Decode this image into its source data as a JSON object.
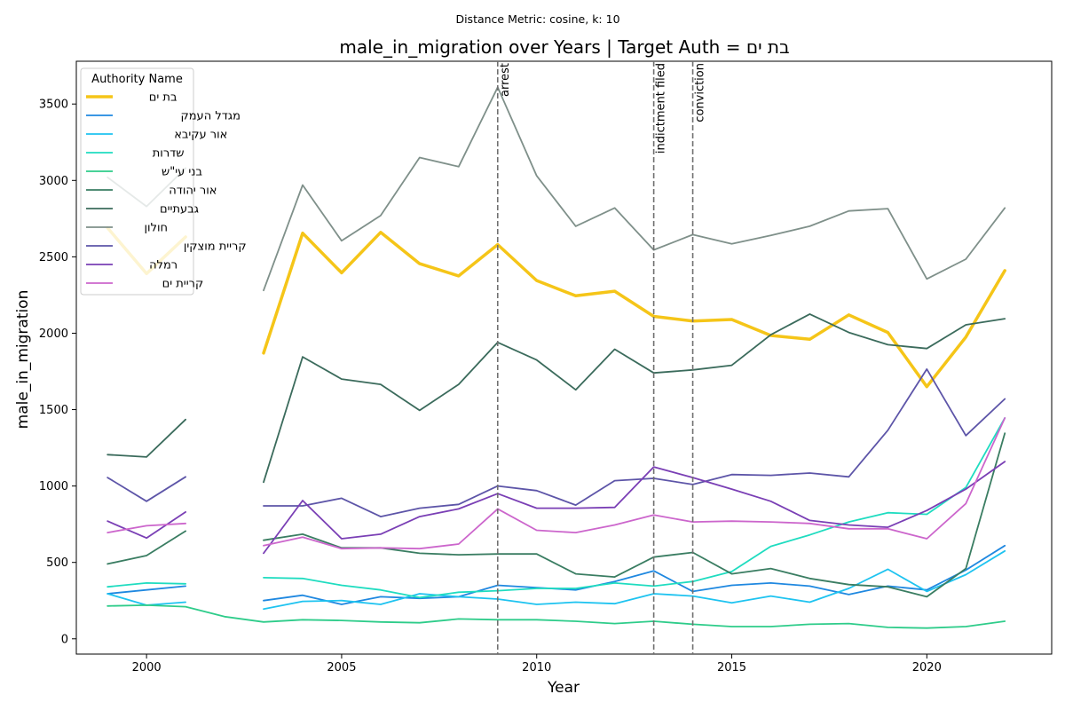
{
  "chart_data": {
    "type": "line",
    "suptitle": "Distance Metric: cosine, k: 10",
    "title": "male_in_migration over Years | Target Auth = בת ים",
    "xlabel": "Year",
    "ylabel": "male_in_migration",
    "xlim": [
      1998.2,
      2023.2
    ],
    "ylim": [
      -100,
      3780
    ],
    "xticks": [
      2000,
      2005,
      2010,
      2015,
      2020
    ],
    "yticks": [
      0,
      500,
      1000,
      1500,
      2000,
      2500,
      3000,
      3500
    ],
    "grid": false,
    "legend": {
      "title": "Authority Name",
      "placement": "top-left"
    },
    "x": [
      1999,
      2000,
      2001,
      2002,
      2003,
      2004,
      2005,
      2006,
      2007,
      2008,
      2009,
      2010,
      2011,
      2012,
      2013,
      2014,
      2015,
      2016,
      2017,
      2018,
      2019,
      2020,
      2021,
      2022
    ],
    "events": [
      {
        "x": 2009,
        "label": "arrest"
      },
      {
        "x": 2013,
        "label": "indictment filed"
      },
      {
        "x": 2014,
        "label": "conviction"
      }
    ],
    "series": [
      {
        "name": "בת ים",
        "color": "#f5c518",
        "width": 3.5,
        "values": [
          2690,
          2390,
          2630,
          null,
          1870,
          2655,
          2395,
          2660,
          2455,
          2375,
          2580,
          2345,
          2245,
          2275,
          2110,
          2080,
          2090,
          1985,
          1960,
          2120,
          2005,
          1650,
          1975,
          2410
        ]
      },
      {
        "name": "מגדל העמק",
        "color": "#1f88e0",
        "width": 1.8,
        "values": [
          295,
          320,
          345,
          null,
          250,
          285,
          225,
          275,
          265,
          275,
          350,
          335,
          320,
          375,
          445,
          310,
          350,
          365,
          345,
          290,
          345,
          320,
          450,
          610
        ]
      },
      {
        "name": "אור עקיבא",
        "color": "#1ec3f0",
        "width": 1.8,
        "values": [
          295,
          220,
          240,
          null,
          195,
          245,
          250,
          225,
          295,
          275,
          260,
          225,
          240,
          230,
          295,
          280,
          235,
          280,
          240,
          330,
          455,
          310,
          420,
          575
        ]
      },
      {
        "name": "שדרות",
        "color": "#1fdcc0",
        "width": 1.8,
        "values": [
          340,
          365,
          360,
          null,
          400,
          395,
          350,
          320,
          270,
          305,
          315,
          330,
          330,
          365,
          345,
          375,
          440,
          605,
          680,
          765,
          825,
          815,
          990,
          1445
        ]
      },
      {
        "name": "בני עי\"ש",
        "color": "#2ecc8a",
        "width": 1.8,
        "values": [
          215,
          220,
          210,
          145,
          110,
          125,
          120,
          110,
          105,
          130,
          125,
          125,
          115,
          100,
          115,
          95,
          80,
          80,
          95,
          100,
          75,
          70,
          80,
          115
        ]
      },
      {
        "name": "אור יהודה",
        "color": "#3a7d62",
        "width": 1.8,
        "values": [
          490,
          545,
          705,
          null,
          645,
          685,
          595,
          595,
          560,
          550,
          555,
          555,
          425,
          405,
          535,
          565,
          425,
          460,
          395,
          355,
          340,
          275,
          460,
          1345
        ]
      },
      {
        "name": "גבעתיים",
        "color": "#3b6b5c",
        "width": 1.8,
        "values": [
          1205,
          1190,
          1435,
          null,
          1025,
          1845,
          1700,
          1665,
          1495,
          1665,
          1940,
          1825,
          1630,
          1895,
          1740,
          1760,
          1790,
          1990,
          2125,
          2005,
          1925,
          1900,
          2055,
          2095
        ]
      },
      {
        "name": "חולון",
        "color": "#7f908a",
        "width": 1.8,
        "values": [
          3020,
          2830,
          3080,
          null,
          2280,
          2970,
          2605,
          2770,
          3150,
          3090,
          3610,
          3030,
          2700,
          2820,
          2545,
          2645,
          2585,
          2640,
          2700,
          2800,
          2815,
          2355,
          2485,
          2820
        ]
      },
      {
        "name": "קריית מוצקין",
        "color": "#5d55a8",
        "width": 1.8,
        "values": [
          1055,
          900,
          1060,
          null,
          870,
          870,
          920,
          800,
          855,
          880,
          1000,
          970,
          875,
          1035,
          1050,
          1010,
          1075,
          1070,
          1085,
          1060,
          1365,
          1765,
          1330,
          1570
        ]
      },
      {
        "name": "רמלה",
        "color": "#7a3fb5",
        "width": 1.8,
        "values": [
          770,
          660,
          830,
          null,
          560,
          905,
          655,
          685,
          800,
          850,
          950,
          855,
          855,
          860,
          1125,
          1055,
          980,
          900,
          775,
          745,
          730,
          840,
          980,
          1160
        ]
      },
      {
        "name": "קריית ים",
        "color": "#cc66cc",
        "width": 1.8,
        "values": [
          695,
          740,
          755,
          null,
          610,
          665,
          590,
          595,
          590,
          620,
          850,
          710,
          695,
          745,
          810,
          765,
          770,
          765,
          755,
          720,
          720,
          655,
          885,
          1445
        ]
      }
    ]
  }
}
